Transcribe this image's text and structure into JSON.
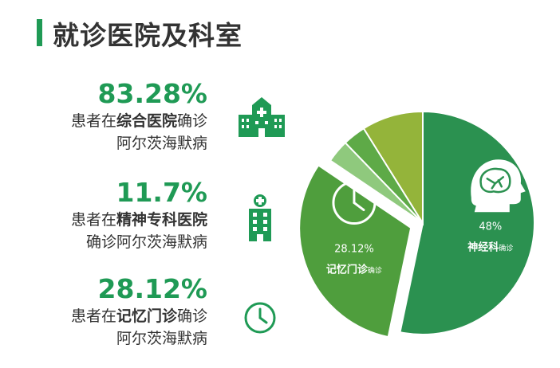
{
  "page_title": "就诊医院及科室",
  "stats": [
    {
      "value": "83.28%",
      "line1_pre": "患者在",
      "line1_bold": "综合医院",
      "line1_post": "确诊",
      "line2": "阿尔茨海默病",
      "icon": "hospital-building-icon"
    },
    {
      "value": "11.7%",
      "line1_pre": "患者在",
      "line1_bold": "精神专科医院",
      "line1_post": "",
      "line2": "确诊阿尔茨海默病",
      "icon": "specialty-hospital-icon"
    },
    {
      "value": "28.12%",
      "line1_pre": "患者在",
      "line1_bold": "记忆门诊",
      "line1_post": "确诊",
      "line2": "阿尔茨海默病",
      "icon": "clock-icon"
    }
  ],
  "chart_data": {
    "type": "pie",
    "title": "",
    "slices": [
      {
        "label_pct": "48%",
        "label_name": "神经科",
        "label_suffix": "确诊",
        "value": 48,
        "color": "#2b9150",
        "icon": "brain-head-icon"
      },
      {
        "label_pct": "28.12%",
        "label_name": "记忆门诊",
        "label_suffix": "确诊",
        "value": 28.12,
        "color": "#4f9e3d",
        "icon": "clock-icon",
        "exploded": true
      },
      {
        "label_pct": "",
        "label_name": "",
        "label_suffix": "",
        "value": 3,
        "color": "#8fc97d"
      },
      {
        "label_pct": "",
        "label_name": "",
        "label_suffix": "",
        "value": 3,
        "color": "#5eaa47"
      },
      {
        "label_pct": "",
        "label_name": "",
        "label_suffix": "",
        "value": 8,
        "color": "#94b43a"
      }
    ]
  },
  "colors": {
    "accent": "#1f9a55",
    "text": "#333333"
  }
}
